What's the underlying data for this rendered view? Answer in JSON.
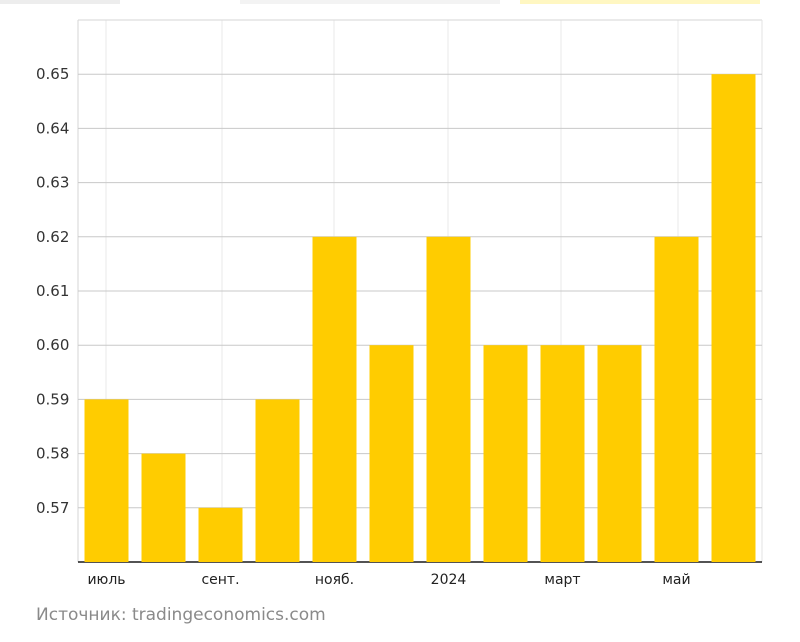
{
  "chart_data": {
    "type": "bar",
    "categories": [
      "июль",
      "",
      "сент.",
      "",
      "нояб.",
      "",
      "2024",
      "",
      "март",
      "",
      "май",
      ""
    ],
    "values": [
      0.59,
      0.58,
      0.57,
      0.59,
      0.62,
      0.6,
      0.62,
      0.6,
      0.6,
      0.6,
      0.62,
      0.65
    ],
    "ylim": [
      0.56,
      0.66
    ],
    "yticks": [
      "0.57",
      "0.58",
      "0.59",
      "0.60",
      "0.61",
      "0.62",
      "0.63",
      "0.64",
      "0.65"
    ],
    "grid": true,
    "bar_color": "#ffcc00",
    "title": "",
    "xlabel": "",
    "ylabel": ""
  },
  "source": "Источник: tradingeconomics.com"
}
